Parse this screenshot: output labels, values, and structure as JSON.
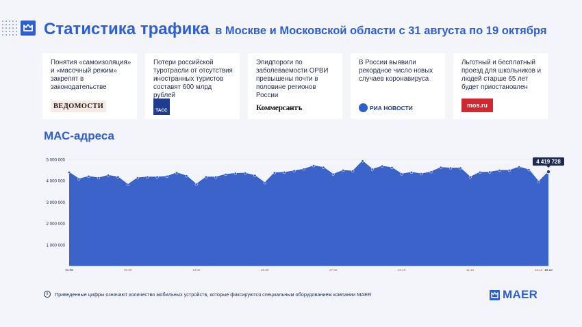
{
  "header": {
    "title": "Статистика трафика",
    "subtitle": "в Москве и Московской области с 31 августа по 19 октября"
  },
  "news": [
    {
      "text": "Понятия «самоизоляция» и «масочный режим» закрепят в законодательстве",
      "source": "ВЕДОМОСТИ"
    },
    {
      "text": "Потери российской туротрасли от отсутствия иностранных туристов составят 600 млрд рублей",
      "source": "ТАСС"
    },
    {
      "text": "Эпидпороги по заболеваемости ОРВИ превышены почти в половине регионов России",
      "source": "Коммерсантъ"
    },
    {
      "text": "В России выявили рекордное число новых случаев коронавируса",
      "source": "РИА НОВОСТИ"
    },
    {
      "text": "Льготный и бесплатный проезд для школьников и людей старше 65 лет будет приостановлен",
      "source": "mos.ru"
    }
  ],
  "section_title": "МАС-адреса",
  "chart_data": {
    "type": "area",
    "ylim": [
      0,
      5000000
    ],
    "yticks": [
      1000000,
      2000000,
      3000000,
      4000000,
      5000000
    ],
    "ytick_labels": [
      "1 000 000",
      "2 000 000",
      "3 000 000",
      "4 000 000",
      "5 000 000"
    ],
    "x_tick_labels": [
      {
        "label": "31.08",
        "index": 0,
        "color": "#1b2a4e"
      },
      {
        "label": "06.09",
        "index": 6,
        "color": "#e85d2a"
      },
      {
        "label": "13.09",
        "index": 13,
        "color": "#e85d2a"
      },
      {
        "label": "20.09",
        "index": 20,
        "color": "#e85d2a"
      },
      {
        "label": "27.09",
        "index": 27,
        "color": "#e85d2a"
      },
      {
        "label": "04.10",
        "index": 34,
        "color": "#e85d2a"
      },
      {
        "label": "11.10",
        "index": 41,
        "color": "#e85d2a"
      },
      {
        "label": "18.10",
        "index": 48,
        "color": "#e85d2a"
      },
      {
        "label": "19.10",
        "index": 49,
        "color": "#1b2a4e"
      }
    ],
    "values": [
      4390000,
      4080000,
      4200000,
      4130000,
      4250000,
      4170000,
      3820000,
      4130000,
      4170000,
      4170000,
      4200000,
      4370000,
      4220000,
      3830000,
      4170000,
      4170000,
      4290000,
      4340000,
      4350000,
      4240000,
      3900000,
      4370000,
      4390000,
      4460000,
      4540000,
      4700000,
      4620000,
      4300000,
      4480000,
      4450000,
      4920000,
      4530000,
      4680000,
      4610000,
      4310000,
      4390000,
      4320000,
      4410000,
      4620000,
      4590000,
      4590000,
      4170000,
      4390000,
      4400000,
      4480000,
      4480000,
      4640000,
      4510000,
      3950000,
      4419728
    ],
    "last_label": "4 419 728",
    "fill_color": "#3b63c9",
    "line_color": "#2e5fd1"
  },
  "footnote": "Приведенные цифры означают количество мобильных устройств, которые фиксируются специальным оборудованием компании MAER",
  "brand": "MAER"
}
